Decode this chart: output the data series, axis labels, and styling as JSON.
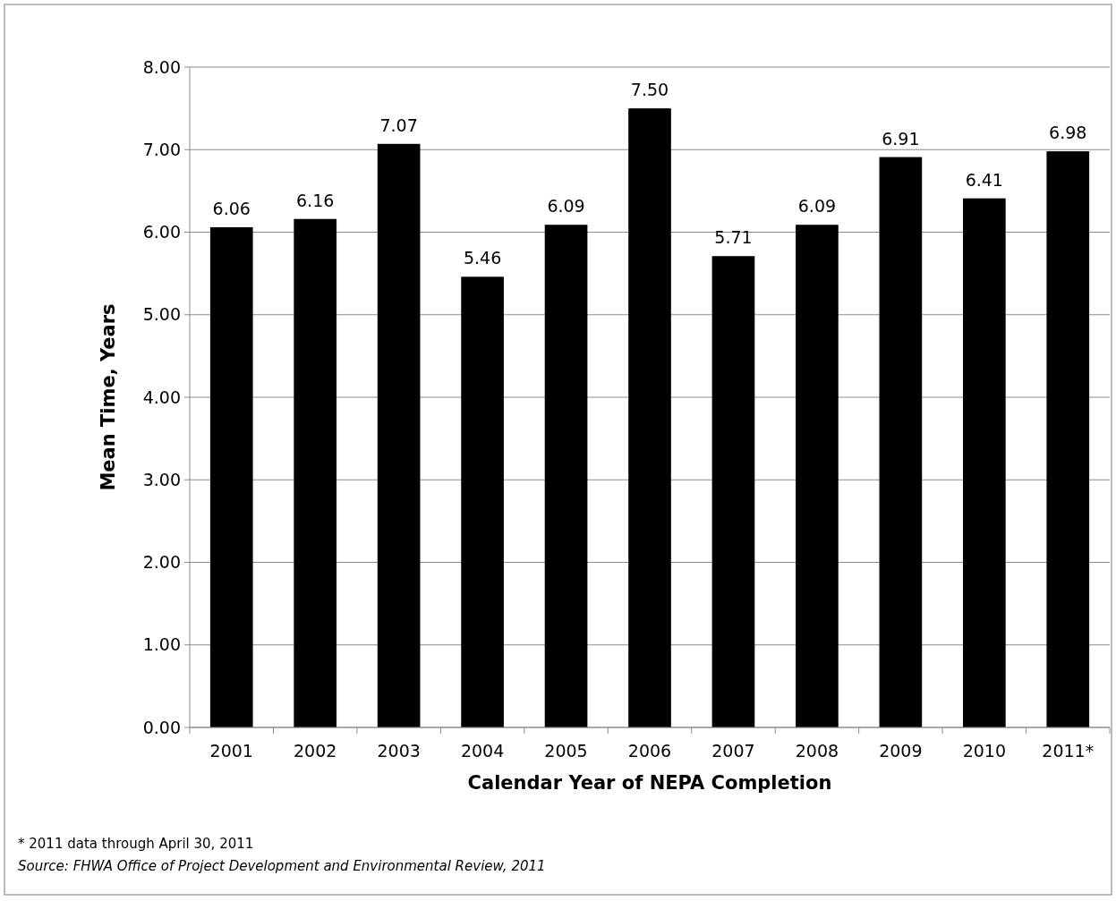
{
  "chart_data": {
    "type": "bar",
    "xlabel": "Calendar Year of NEPA Completion",
    "ylabel": "Mean Time, Years",
    "categories": [
      "2001",
      "2002",
      "2003",
      "2004",
      "2005",
      "2006",
      "2007",
      "2008",
      "2009",
      "2010",
      "2011*"
    ],
    "values": [
      6.06,
      6.16,
      7.07,
      5.46,
      6.09,
      7.5,
      5.71,
      6.09,
      6.91,
      6.41,
      6.98
    ],
    "value_labels": [
      "6.06",
      "6.16",
      "7.07",
      "5.46",
      "6.09",
      "7.50",
      "5.71",
      "6.09",
      "6.91",
      "6.41",
      "6.98"
    ],
    "color": "#000000",
    "ylim": [
      0,
      8
    ],
    "yticks": [
      {
        "value": 0,
        "label": "0.00"
      },
      {
        "value": 1,
        "label": "1.00"
      },
      {
        "value": 2,
        "label": "2.00"
      },
      {
        "value": 3,
        "label": "3.00"
      },
      {
        "value": 4,
        "label": "4.00"
      },
      {
        "value": 5,
        "label": "5.00"
      },
      {
        "value": 6,
        "label": "6.00"
      },
      {
        "value": 7,
        "label": "7.00"
      },
      {
        "value": 8,
        "label": "8.00"
      }
    ],
    "grid": "y",
    "annotations": [
      "* 2011 data through April 30, 2011",
      "Source: FHWA Office of Project Development and Environmental Review, 2011"
    ]
  }
}
